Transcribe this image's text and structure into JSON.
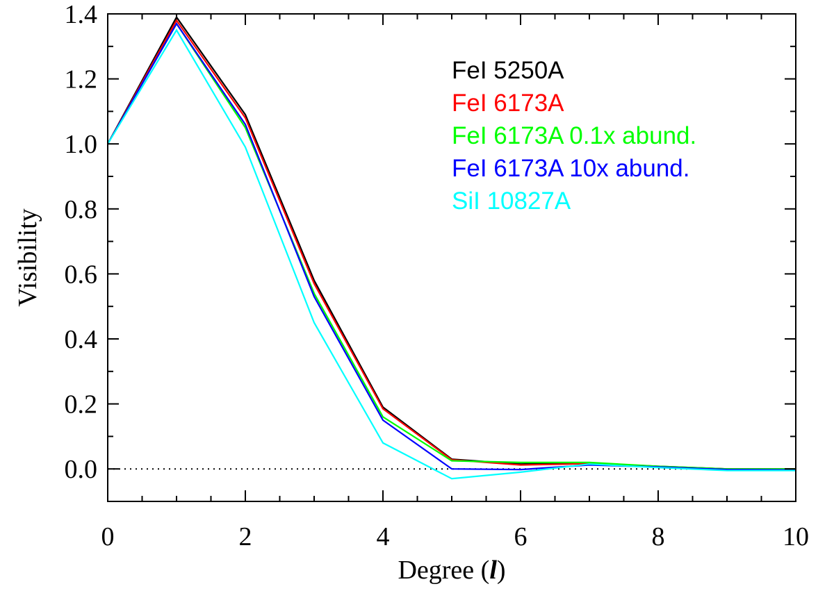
{
  "chart_data": {
    "type": "line",
    "title": "",
    "xlabel": "Degree (",
    "xlabel_symbol": "l",
    "xlabel_close": ")",
    "ylabel": "Visibility",
    "xlim": [
      0,
      10
    ],
    "ylim": [
      -0.1,
      1.4
    ],
    "x_major_ticks": [
      0,
      2,
      4,
      6,
      8,
      10
    ],
    "x_tick_labels": [
      "0",
      "2",
      "4",
      "6",
      "8",
      "10"
    ],
    "x_minor_step": 0.5,
    "y_major_ticks": [
      0.0,
      0.2,
      0.4,
      0.6,
      0.8,
      1.0,
      1.2,
      1.4
    ],
    "y_tick_labels": [
      "0.0",
      "0.2",
      "0.4",
      "0.6",
      "0.8",
      "1.0",
      "1.2",
      "1.4"
    ],
    "y_minor_step": 0.1,
    "reference_line": {
      "y": 0.0,
      "style": "dotted"
    },
    "legend_position": "top-right",
    "x": [
      0,
      1,
      2,
      3,
      4,
      5,
      6,
      7,
      8,
      9,
      10
    ],
    "series": [
      {
        "name": "FeI 5250A",
        "color": "#000000",
        "values": [
          1.0,
          1.39,
          1.09,
          0.58,
          0.19,
          0.03,
          0.015,
          0.018,
          0.008,
          0.0,
          0.0
        ]
      },
      {
        "name": "FeI 6173A",
        "color": "#ff0000",
        "values": [
          1.0,
          1.38,
          1.08,
          0.57,
          0.185,
          0.028,
          0.012,
          0.016,
          0.007,
          0.0,
          0.0
        ]
      },
      {
        "name": "FeI 6173A 0.1x abund.",
        "color": "#00ff00",
        "values": [
          1.0,
          1.37,
          1.05,
          0.54,
          0.16,
          0.025,
          0.02,
          0.02,
          0.008,
          0.0,
          0.0
        ]
      },
      {
        "name": "FeI 6173A 10x abund.",
        "color": "#0000ff",
        "values": [
          1.0,
          1.37,
          1.06,
          0.53,
          0.15,
          0.0,
          -0.002,
          0.012,
          0.006,
          -0.002,
          -0.003
        ]
      },
      {
        "name": "SiI 10827A",
        "color": "#00ffff",
        "values": [
          1.0,
          1.35,
          0.99,
          0.45,
          0.08,
          -0.03,
          -0.01,
          0.015,
          0.004,
          -0.005,
          -0.005
        ]
      }
    ]
  }
}
